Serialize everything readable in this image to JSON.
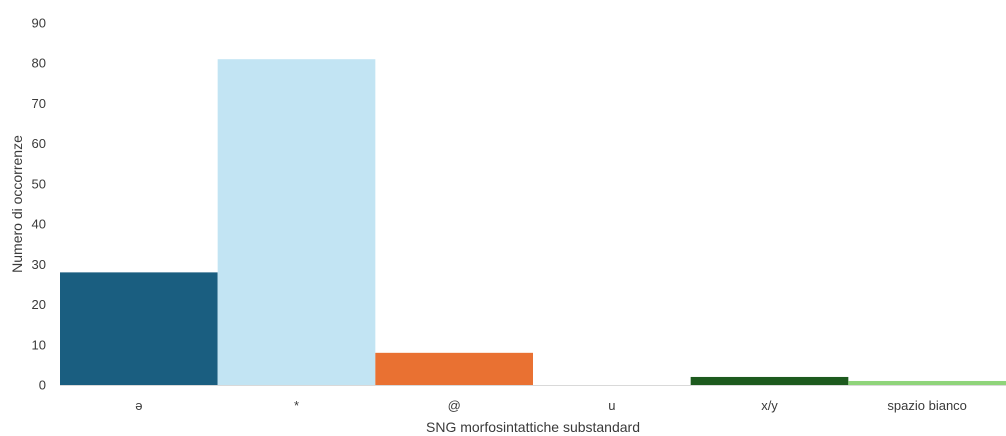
{
  "chart_data": {
    "type": "bar",
    "title": "",
    "xlabel": "SNG morfosintattiche substandard",
    "ylabel": "Numero di occorrenze",
    "ylim": [
      0,
      90
    ],
    "yticks": [
      0,
      10,
      20,
      30,
      40,
      50,
      60,
      70,
      80,
      90
    ],
    "grid": false,
    "legend": "none",
    "categories": [
      "ə",
      "*",
      "@",
      "u",
      "x/y",
      "spazio bianco"
    ],
    "values": [
      28,
      81,
      8,
      0,
      2,
      1
    ],
    "colors": [
      "#1a5e80",
      "#c2e4f3",
      "#e97132",
      "#b0b0b0",
      "#1d5a1e",
      "#8fd47a"
    ],
    "axis_color": "#d9d9d9"
  }
}
